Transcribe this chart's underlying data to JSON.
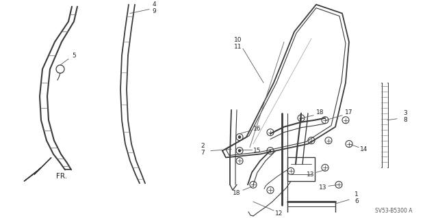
{
  "bg_color": "#ffffff",
  "part_number": "SV53-B5300 A",
  "fr_label": "FR.",
  "line_color": "#3a3a3a",
  "label_color": "#222222"
}
